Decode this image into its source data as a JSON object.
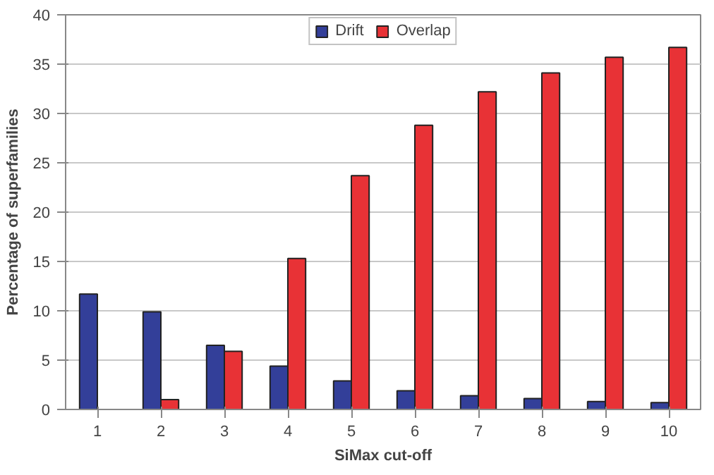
{
  "chart_data": {
    "type": "bar",
    "xlabel": "SiMax cut-off",
    "ylabel": "Percentage of superfamilies",
    "categories": [
      "1",
      "2",
      "3",
      "4",
      "5",
      "6",
      "7",
      "8",
      "9",
      "10"
    ],
    "series": [
      {
        "name": "Drift",
        "color": "#333f99",
        "values": [
          11.7,
          9.9,
          6.5,
          4.4,
          2.9,
          1.9,
          1.4,
          1.1,
          0.8,
          0.7
        ]
      },
      {
        "name": "Overlap",
        "color": "#e83236",
        "values": [
          null,
          1.0,
          5.9,
          15.3,
          23.7,
          28.8,
          32.2,
          34.1,
          35.7,
          36.7
        ]
      }
    ],
    "ylim": [
      0,
      40
    ],
    "yticks": [
      0,
      5,
      10,
      15,
      20,
      25,
      30,
      35,
      40
    ],
    "grid": "y",
    "legend": "top"
  }
}
